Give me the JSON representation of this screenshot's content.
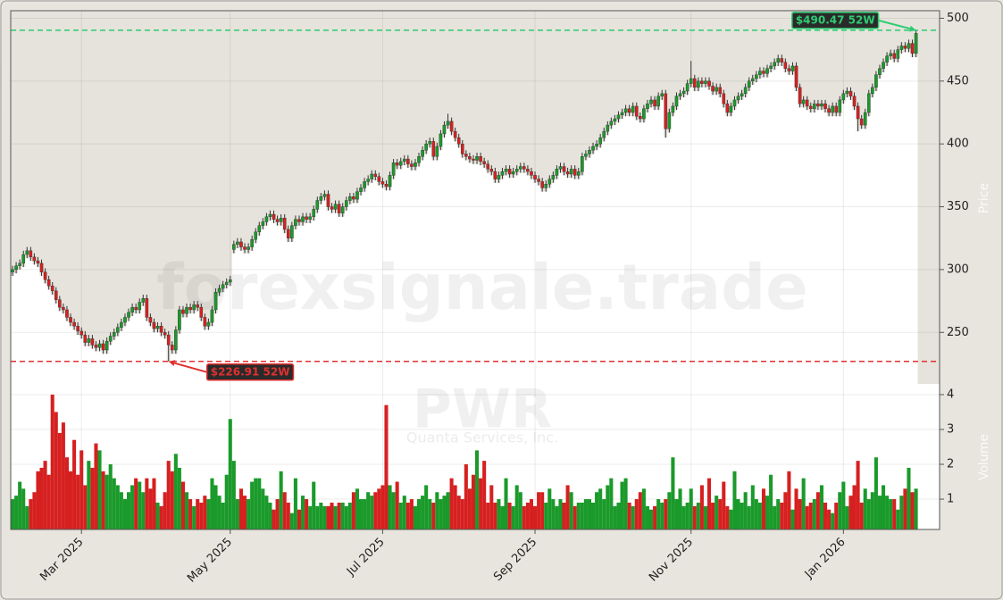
{
  "chart_data": {
    "type": "candlestick",
    "watermark": "forexsignale.trade",
    "symbol": "PWR",
    "company": "Quanta Services, Inc.",
    "ylabel": "Price",
    "volume_label": "Volume",
    "up_color": "#1a9a2a",
    "down_color": "#d62020",
    "grid": true,
    "xlim": [
      -0.5,
      255.5
    ],
    "xticks": [
      {
        "value": 19,
        "label": "Mar 2025"
      },
      {
        "value": 60,
        "label": "May 2025"
      },
      {
        "value": 102,
        "label": "Jul 2025"
      },
      {
        "value": 144,
        "label": "Sep 2025"
      },
      {
        "value": 187,
        "label": "Nov 2025"
      },
      {
        "value": 229,
        "label": "Jan 2026"
      }
    ],
    "ylim": [
      209,
      506
    ],
    "yticks": [
      250,
      300,
      350,
      400,
      450,
      500
    ],
    "vlim": [
      0.13,
      4.23
    ],
    "vticks": [
      1,
      2,
      3,
      4
    ],
    "annotations": [
      {
        "label": "$490.47 52W",
        "value": 490.47,
        "color": "#2ecc71"
      },
      {
        "label": "$226.91 52W",
        "value": 226.91,
        "color": "#e03030"
      }
    ],
    "open": [
      298,
      300,
      303,
      305,
      312,
      315,
      310,
      307,
      305,
      298,
      292,
      287,
      283,
      276,
      270,
      268,
      262,
      258,
      255,
      251,
      248,
      242,
      245,
      240,
      238,
      241,
      236,
      243,
      247,
      250,
      254,
      258,
      262,
      266,
      270,
      268,
      274,
      277,
      262,
      258,
      253,
      255,
      250,
      248,
      240,
      236,
      252,
      268,
      265,
      270,
      268,
      272,
      270,
      262,
      255,
      258,
      268,
      282,
      285,
      288,
      290,
      316,
      320,
      322,
      318,
      316,
      318,
      324,
      330,
      335,
      338,
      342,
      344,
      340,
      338,
      341,
      332,
      325,
      335,
      340,
      338,
      342,
      340,
      342,
      348,
      355,
      358,
      360,
      350,
      348,
      352,
      345,
      350,
      355,
      358,
      356,
      362,
      365,
      370,
      372,
      376,
      374,
      370,
      368,
      366,
      375,
      385,
      383,
      386,
      388,
      384,
      382,
      385,
      390,
      395,
      400,
      402,
      390,
      398,
      408,
      415,
      418,
      410,
      405,
      400,
      392,
      390,
      388,
      387,
      390,
      386,
      384,
      380,
      378,
      372,
      375,
      378,
      380,
      376,
      378,
      380,
      382,
      380,
      378,
      375,
      372,
      370,
      365,
      368,
      372,
      375,
      380,
      382,
      378,
      376,
      380,
      375,
      378,
      390,
      392,
      395,
      398,
      400,
      405,
      410,
      415,
      418,
      420,
      423,
      425,
      428,
      425,
      430,
      422,
      420,
      428,
      432,
      435,
      430,
      438,
      440,
      412,
      425,
      430,
      438,
      440,
      442,
      448,
      452,
      445,
      450,
      448,
      450,
      446,
      442,
      445,
      440,
      432,
      425,
      430,
      435,
      438,
      440,
      445,
      450,
      452,
      455,
      458,
      456,
      460,
      462,
      465,
      468,
      465,
      460,
      458,
      462,
      445,
      432,
      435,
      430,
      428,
      432,
      430,
      432,
      428,
      425,
      430,
      425,
      435,
      440,
      442,
      438,
      430,
      420,
      415,
      425,
      440,
      445,
      455,
      460,
      465,
      470,
      472,
      468,
      475,
      478,
      476,
      480,
      472
    ],
    "high": [
      303,
      306,
      308,
      315,
      318,
      318,
      313,
      310,
      308,
      301,
      295,
      290,
      286,
      279,
      273,
      271,
      265,
      261,
      258,
      254,
      251,
      248,
      248,
      243,
      244,
      244,
      246,
      250,
      253,
      257,
      261,
      265,
      269,
      273,
      273,
      277,
      280,
      280,
      265,
      261,
      258,
      258,
      253,
      251,
      243,
      255,
      271,
      271,
      273,
      273,
      275,
      275,
      273,
      265,
      261,
      271,
      285,
      288,
      291,
      293,
      295,
      323,
      325,
      325,
      321,
      321,
      327,
      333,
      338,
      341,
      345,
      347,
      347,
      343,
      344,
      344,
      335,
      338,
      343,
      343,
      345,
      345,
      345,
      351,
      358,
      361,
      363,
      363,
      353,
      355,
      355,
      353,
      358,
      361,
      361,
      365,
      368,
      373,
      375,
      379,
      379,
      377,
      373,
      371,
      378,
      388,
      388,
      389,
      391,
      391,
      387,
      388,
      393,
      398,
      403,
      405,
      405,
      401,
      411,
      418,
      424,
      421,
      413,
      408,
      403,
      395,
      393,
      391,
      393,
      393,
      389,
      387,
      383,
      381,
      378,
      381,
      383,
      383,
      381,
      383,
      385,
      385,
      383,
      381,
      378,
      375,
      373,
      371,
      375,
      378,
      383,
      385,
      385,
      381,
      383,
      383,
      381,
      393,
      395,
      398,
      401,
      403,
      408,
      413,
      418,
      421,
      423,
      426,
      428,
      431,
      431,
      433,
      433,
      425,
      431,
      435,
      438,
      438,
      441,
      443,
      443,
      428,
      433,
      441,
      443,
      445,
      451,
      466,
      455,
      453,
      453,
      453,
      453,
      449,
      448,
      448,
      443,
      435,
      433,
      438,
      441,
      443,
      448,
      453,
      455,
      458,
      461,
      461,
      463,
      465,
      468,
      471,
      471,
      468,
      463,
      465,
      465,
      448,
      438,
      438,
      433,
      435,
      435,
      435,
      435,
      431,
      433,
      433,
      438,
      443,
      445,
      445,
      441,
      433,
      423,
      428,
      443,
      448,
      458,
      463,
      468,
      473,
      475,
      475,
      478,
      481,
      481,
      483,
      483,
      490.47
    ],
    "low": [
      295,
      297,
      300,
      302,
      309,
      307,
      304,
      302,
      295,
      289,
      284,
      280,
      273,
      267,
      265,
      259,
      255,
      252,
      248,
      245,
      239,
      239,
      237,
      235,
      235,
      233,
      233,
      240,
      244,
      247,
      251,
      255,
      259,
      263,
      265,
      265,
      271,
      259,
      255,
      250,
      250,
      247,
      245,
      226.91,
      233,
      233,
      249,
      262,
      262,
      265,
      265,
      267,
      259,
      252,
      252,
      255,
      265,
      279,
      282,
      285,
      287,
      313,
      317,
      315,
      313,
      313,
      315,
      321,
      327,
      332,
      335,
      339,
      337,
      335,
      335,
      329,
      322,
      322,
      332,
      335,
      335,
      337,
      337,
      339,
      345,
      352,
      355,
      347,
      345,
      345,
      342,
      342,
      347,
      352,
      353,
      353,
      359,
      362,
      367,
      369,
      371,
      367,
      365,
      363,
      363,
      372,
      380,
      380,
      383,
      381,
      379,
      379,
      382,
      387,
      392,
      397,
      387,
      387,
      395,
      405,
      412,
      407,
      402,
      397,
      389,
      387,
      385,
      384,
      384,
      383,
      381,
      377,
      375,
      369,
      369,
      372,
      375,
      373,
      373,
      375,
      377,
      377,
      375,
      372,
      369,
      367,
      362,
      362,
      365,
      369,
      372,
      377,
      375,
      373,
      373,
      372,
      372,
      375,
      387,
      389,
      392,
      395,
      397,
      402,
      407,
      412,
      415,
      417,
      420,
      422,
      422,
      422,
      419,
      417,
      417,
      425,
      429,
      427,
      427,
      435,
      405,
      409,
      422,
      427,
      435,
      437,
      439,
      445,
      442,
      442,
      445,
      445,
      443,
      439,
      439,
      437,
      429,
      422,
      422,
      427,
      432,
      435,
      437,
      442,
      447,
      449,
      452,
      453,
      453,
      457,
      459,
      462,
      462,
      457,
      455,
      455,
      442,
      429,
      429,
      427,
      425,
      425,
      427,
      427,
      425,
      422,
      422,
      422,
      422,
      432,
      437,
      435,
      427,
      410,
      412,
      412,
      422,
      437,
      442,
      452,
      457,
      462,
      467,
      465,
      465,
      472,
      473,
      473,
      469,
      469
    ],
    "close": [
      300,
      303,
      305,
      312,
      315,
      310,
      307,
      305,
      298,
      292,
      287,
      283,
      276,
      270,
      268,
      262,
      258,
      255,
      251,
      248,
      242,
      245,
      240,
      238,
      241,
      236,
      243,
      247,
      250,
      254,
      258,
      262,
      266,
      270,
      268,
      274,
      277,
      262,
      258,
      253,
      255,
      250,
      248,
      240,
      236,
      252,
      268,
      265,
      270,
      268,
      272,
      270,
      262,
      255,
      258,
      268,
      282,
      285,
      288,
      290,
      292,
      320,
      322,
      318,
      316,
      318,
      324,
      330,
      335,
      338,
      342,
      344,
      340,
      338,
      341,
      332,
      325,
      335,
      340,
      338,
      342,
      340,
      342,
      348,
      355,
      358,
      360,
      350,
      348,
      352,
      345,
      350,
      355,
      358,
      356,
      362,
      365,
      370,
      372,
      376,
      374,
      370,
      368,
      366,
      375,
      385,
      383,
      386,
      388,
      384,
      382,
      385,
      390,
      395,
      400,
      402,
      390,
      398,
      408,
      415,
      418,
      410,
      405,
      400,
      392,
      390,
      388,
      387,
      390,
      386,
      384,
      380,
      378,
      372,
      375,
      378,
      380,
      376,
      378,
      380,
      382,
      380,
      378,
      375,
      372,
      370,
      365,
      368,
      372,
      375,
      380,
      382,
      378,
      376,
      380,
      375,
      378,
      390,
      392,
      395,
      398,
      400,
      405,
      410,
      415,
      418,
      420,
      423,
      425,
      428,
      425,
      430,
      422,
      420,
      428,
      432,
      435,
      430,
      438,
      440,
      412,
      425,
      430,
      438,
      440,
      442,
      448,
      452,
      445,
      450,
      448,
      450,
      446,
      442,
      445,
      440,
      432,
      425,
      430,
      435,
      438,
      440,
      445,
      450,
      452,
      455,
      458,
      456,
      460,
      462,
      465,
      468,
      465,
      460,
      458,
      462,
      445,
      432,
      435,
      430,
      428,
      432,
      430,
      432,
      428,
      425,
      430,
      425,
      435,
      440,
      442,
      438,
      430,
      420,
      415,
      425,
      440,
      445,
      455,
      460,
      465,
      470,
      472,
      468,
      475,
      478,
      476,
      480,
      472,
      488
    ],
    "volume": [
      1.0,
      1.1,
      1.5,
      1.3,
      0.8,
      1.0,
      1.2,
      1.8,
      1.9,
      2.1,
      1.7,
      4.0,
      3.5,
      2.9,
      3.2,
      2.2,
      1.8,
      2.7,
      1.7,
      2.4,
      1.4,
      2.1,
      1.9,
      2.6,
      2.4,
      1.8,
      1.7,
      2.0,
      1.6,
      1.4,
      1.2,
      1.0,
      1.2,
      1.4,
      1.6,
      1.5,
      1.2,
      1.6,
      1.3,
      1.6,
      0.9,
      0.8,
      1.2,
      2.1,
      1.8,
      2.3,
      1.9,
      1.5,
      1.2,
      1.0,
      0.8,
      1.0,
      0.9,
      1.1,
      1.0,
      1.6,
      1.4,
      1.1,
      0.9,
      1.7,
      3.3,
      2.1,
      1.0,
      1.3,
      1.1,
      1.0,
      1.5,
      1.6,
      1.6,
      1.3,
      1.1,
      0.9,
      0.7,
      1.0,
      1.8,
      1.2,
      0.9,
      0.6,
      1.6,
      0.7,
      1.1,
      1.0,
      0.8,
      1.5,
      0.8,
      0.9,
      0.8,
      0.8,
      0.9,
      0.8,
      0.9,
      0.9,
      0.8,
      0.9,
      1.2,
      1.3,
      1.0,
      1.0,
      1.2,
      1.1,
      1.2,
      1.3,
      1.4,
      3.7,
      1.4,
      1.2,
      1.5,
      0.9,
      1.1,
      0.9,
      1.0,
      0.8,
      1.0,
      1.1,
      1.4,
      1.0,
      0.9,
      1.2,
      1.0,
      1.1,
      1.2,
      1.6,
      1.4,
      1.1,
      1.0,
      2.0,
      1.3,
      1.7,
      2.4,
      1.6,
      2.1,
      0.9,
      1.4,
      0.9,
      1.0,
      0.8,
      1.6,
      0.9,
      0.8,
      1.4,
      1.2,
      0.8,
      0.9,
      1.0,
      0.8,
      1.2,
      1.2,
      0.9,
      1.3,
      1.0,
      0.8,
      1.0,
      0.9,
      1.4,
      1.2,
      0.8,
      0.9,
      0.9,
      1.0,
      1.0,
      0.9,
      1.2,
      1.3,
      1.0,
      1.4,
      1.6,
      0.8,
      0.9,
      1.5,
      1.6,
      0.9,
      0.8,
      1.0,
      1.2,
      1.3,
      0.8,
      0.7,
      0.8,
      1.0,
      0.9,
      1.0,
      1.2,
      2.2,
      1.0,
      1.3,
      0.8,
      0.9,
      1.3,
      0.8,
      0.9,
      1.4,
      0.8,
      1.6,
      0.9,
      1.1,
      1.0,
      1.5,
      0.8,
      0.7,
      1.8,
      1.0,
      0.9,
      1.2,
      0.8,
      1.4,
      1.0,
      0.9,
      1.3,
      1.1,
      1.7,
      0.8,
      1.0,
      0.9,
      1.2,
      1.8,
      0.7,
      1.3,
      1.0,
      1.6,
      0.8,
      0.9,
      1.0,
      1.2,
      1.4,
      0.9,
      0.7,
      0.6,
      0.9,
      1.2,
      1.5,
      0.8,
      1.1,
      1.4,
      2.1,
      0.9,
      1.3,
      1.0,
      1.2,
      2.2,
      1.1,
      1.4,
      1.1,
      1.0,
      1.0,
      0.7,
      1.1,
      1.3,
      1.9,
      1.2,
      1.3
    ]
  }
}
